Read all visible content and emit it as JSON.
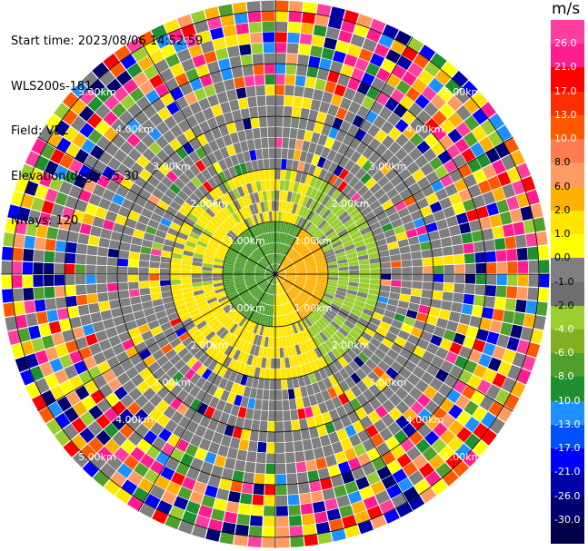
{
  "header": {
    "start_time": "Start time: 2023/08/06 14:52:59",
    "instrument": "WLS200s-181",
    "field": "Field: VEL",
    "elevation": "Elevation(deg): 35.30",
    "nrays": "NRays: 120"
  },
  "colorbar": {
    "unit": "m/s",
    "ticks": [
      "26.0",
      "21.0",
      "17.0",
      "13.0",
      "10.0",
      "8.0",
      "6.0",
      "2.0",
      "1.0",
      "0.0",
      "-1.0",
      "-2.0",
      "-4.0",
      "-6.0",
      "-8.0",
      "-10.0",
      "-13.0",
      "-17.0",
      "-21.0",
      "-26.0",
      "-30.0"
    ],
    "colors": [
      "#ff3f9f",
      "#ff1c8c",
      "#ff0000",
      "#ff2e00",
      "#ff5900",
      "#ff7a50",
      "#ff9a60",
      "#ffb000",
      "#ffe600",
      "#ffff00",
      "#7f7f7f",
      "#6f6f6f",
      "#9acd32",
      "#7fb020",
      "#4f9f2f",
      "#1f8f2f",
      "#1e90ff",
      "#0050ff",
      "#0000ff",
      "#0000a8",
      "#00006f",
      "#000048"
    ]
  },
  "range_labels": [
    "1.00km",
    "2.00km",
    "3.00km",
    "4.00km",
    "5.00km"
  ]
}
